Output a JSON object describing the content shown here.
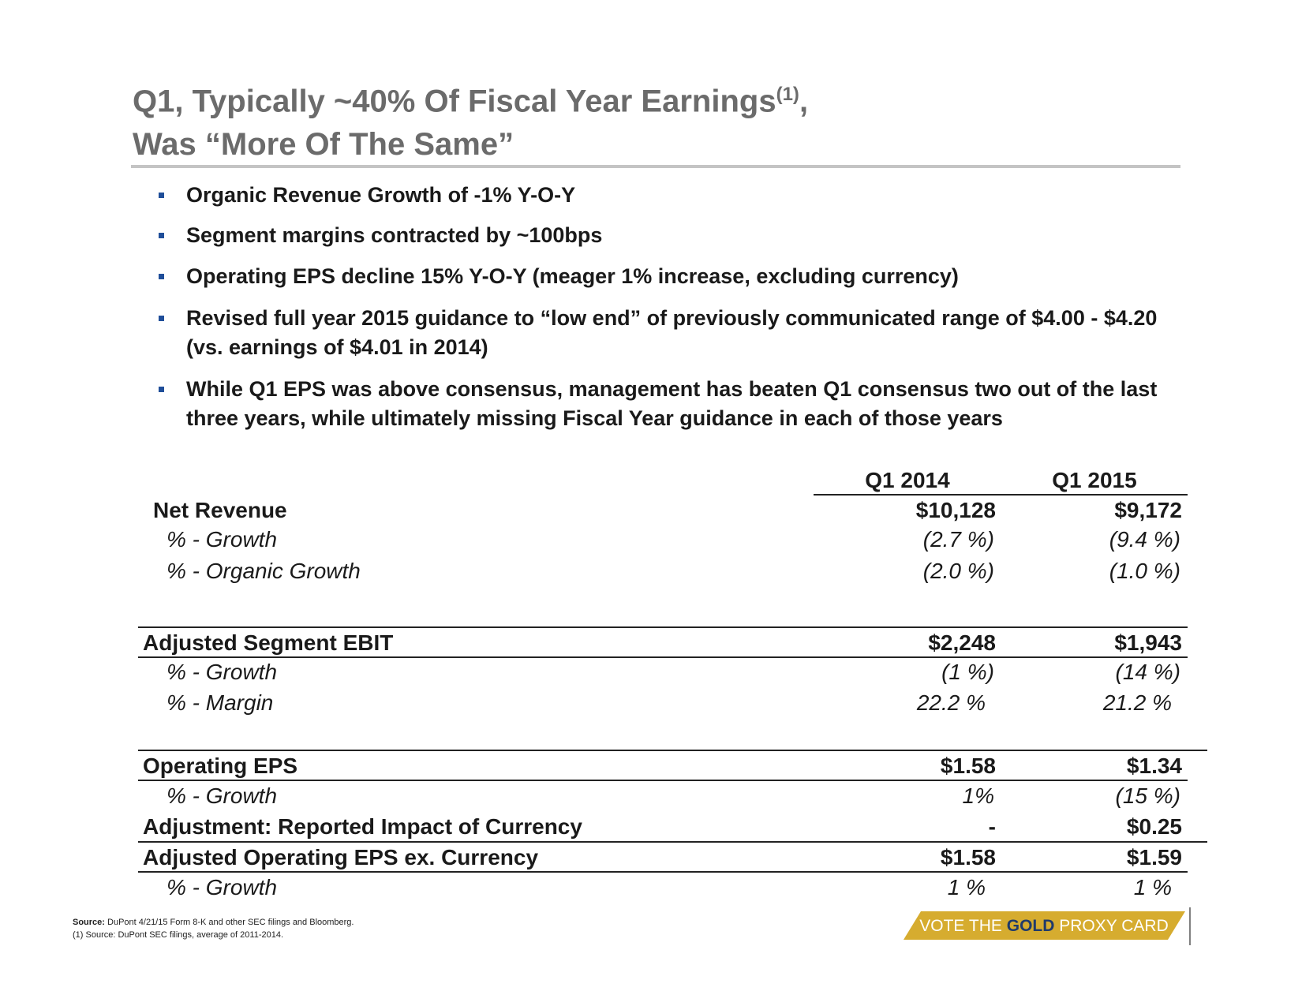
{
  "title": {
    "line1": "Q1, Typically ~40% Of Fiscal Year Earnings",
    "footnote_ref": "(1)",
    "line1_end": ",",
    "line2": "Was “More Of The Same”"
  },
  "bullets": [
    "Organic Revenue Growth of -1% Y-O-Y",
    "Segment margins contracted by ~100bps",
    "Operating EPS decline 15% Y-O-Y (meager 1% increase, excluding currency)",
    "Revised full year 2015 guidance to “low end” of previously communicated range of $4.00 - $4.20 (vs. earnings of $4.01 in 2014)",
    "While Q1 EPS was above consensus, management has beaten Q1 consensus two out of the last three years, while ultimately missing Fiscal Year guidance in each of those years"
  ],
  "table": {
    "columns": [
      "Q1 2014",
      "Q1 2015"
    ],
    "rows": [
      {
        "label": "Net Revenue",
        "values": [
          "$10,128",
          "$9,172"
        ]
      },
      {
        "label": "% - Growth",
        "values": [
          "(2.7 %)",
          "(9.4 %)"
        ]
      },
      {
        "label": "% - Organic Growth",
        "values": [
          "(2.0 %)",
          "(1.0 %)"
        ]
      },
      {
        "label": "Adjusted Segment EBIT",
        "values": [
          "$2,248",
          "$1,943"
        ]
      },
      {
        "label": "% - Growth",
        "values": [
          "(1 %)",
          "(14 %)"
        ]
      },
      {
        "label": "% - Margin",
        "values": [
          "22.2 %",
          "21.2 %"
        ]
      },
      {
        "label": "Operating EPS",
        "values": [
          "$1.58",
          "$1.34"
        ]
      },
      {
        "label": "% - Growth",
        "values": [
          "1%",
          "(15 %)"
        ]
      },
      {
        "label": "Adjustment: Reported Impact of Currency",
        "values": [
          "-",
          "$0.25"
        ]
      },
      {
        "label": "Adjusted Operating EPS ex. Currency",
        "values": [
          "$1.58",
          "$1.59"
        ]
      },
      {
        "label": "% - Growth",
        "values": [
          "1 %",
          "1 %"
        ]
      }
    ]
  },
  "footnotes": {
    "source_label": "Source:",
    "source_text": "DuPont 4/21/15 Form 8-K and other SEC filings and Bloomberg.",
    "note": "(1) Source: DuPont SEC filings, average of 2011-2014."
  },
  "badge": {
    "before": "VOTE THE",
    "highlight": "GOLD",
    "after": "PROXY CARD"
  }
}
